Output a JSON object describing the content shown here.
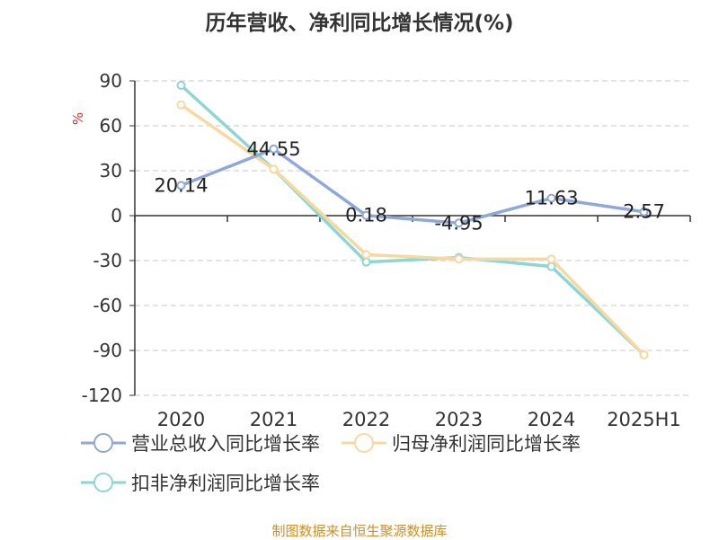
{
  "title": "历年营收、净利同比增长情况(%)",
  "source": "制图数据来自恒生聚源数据库",
  "chart_data": {
    "type": "line",
    "title": "历年营收、净利同比增长情况(%)",
    "ylabel": "%",
    "categories": [
      "2020",
      "2021",
      "2022",
      "2023",
      "2024",
      "2025H1"
    ],
    "ylim": [
      -120,
      90
    ],
    "yticks": [
      90,
      60,
      30,
      0,
      -30,
      -60,
      -90,
      -120
    ],
    "grid": true,
    "legend_position": "bottom-left",
    "series": [
      {
        "name": "营业总收入同比增长率",
        "color": "#8fa8d6",
        "values": [
          20.14,
          44.55,
          0.18,
          -4.95,
          11.63,
          2.57
        ],
        "labels": [
          "20.14",
          "44.55",
          "0.18",
          "-4.95",
          "11.63",
          "2.57"
        ]
      },
      {
        "name": "归母净利润同比增长率",
        "color": "#f7d9a0",
        "values": [
          74,
          31,
          -26,
          -29,
          -29,
          -93
        ]
      },
      {
        "name": "扣非净利润同比增长率",
        "color": "#8dd6d4",
        "values": [
          87,
          31,
          -31,
          -28,
          -34,
          -93
        ]
      }
    ]
  }
}
